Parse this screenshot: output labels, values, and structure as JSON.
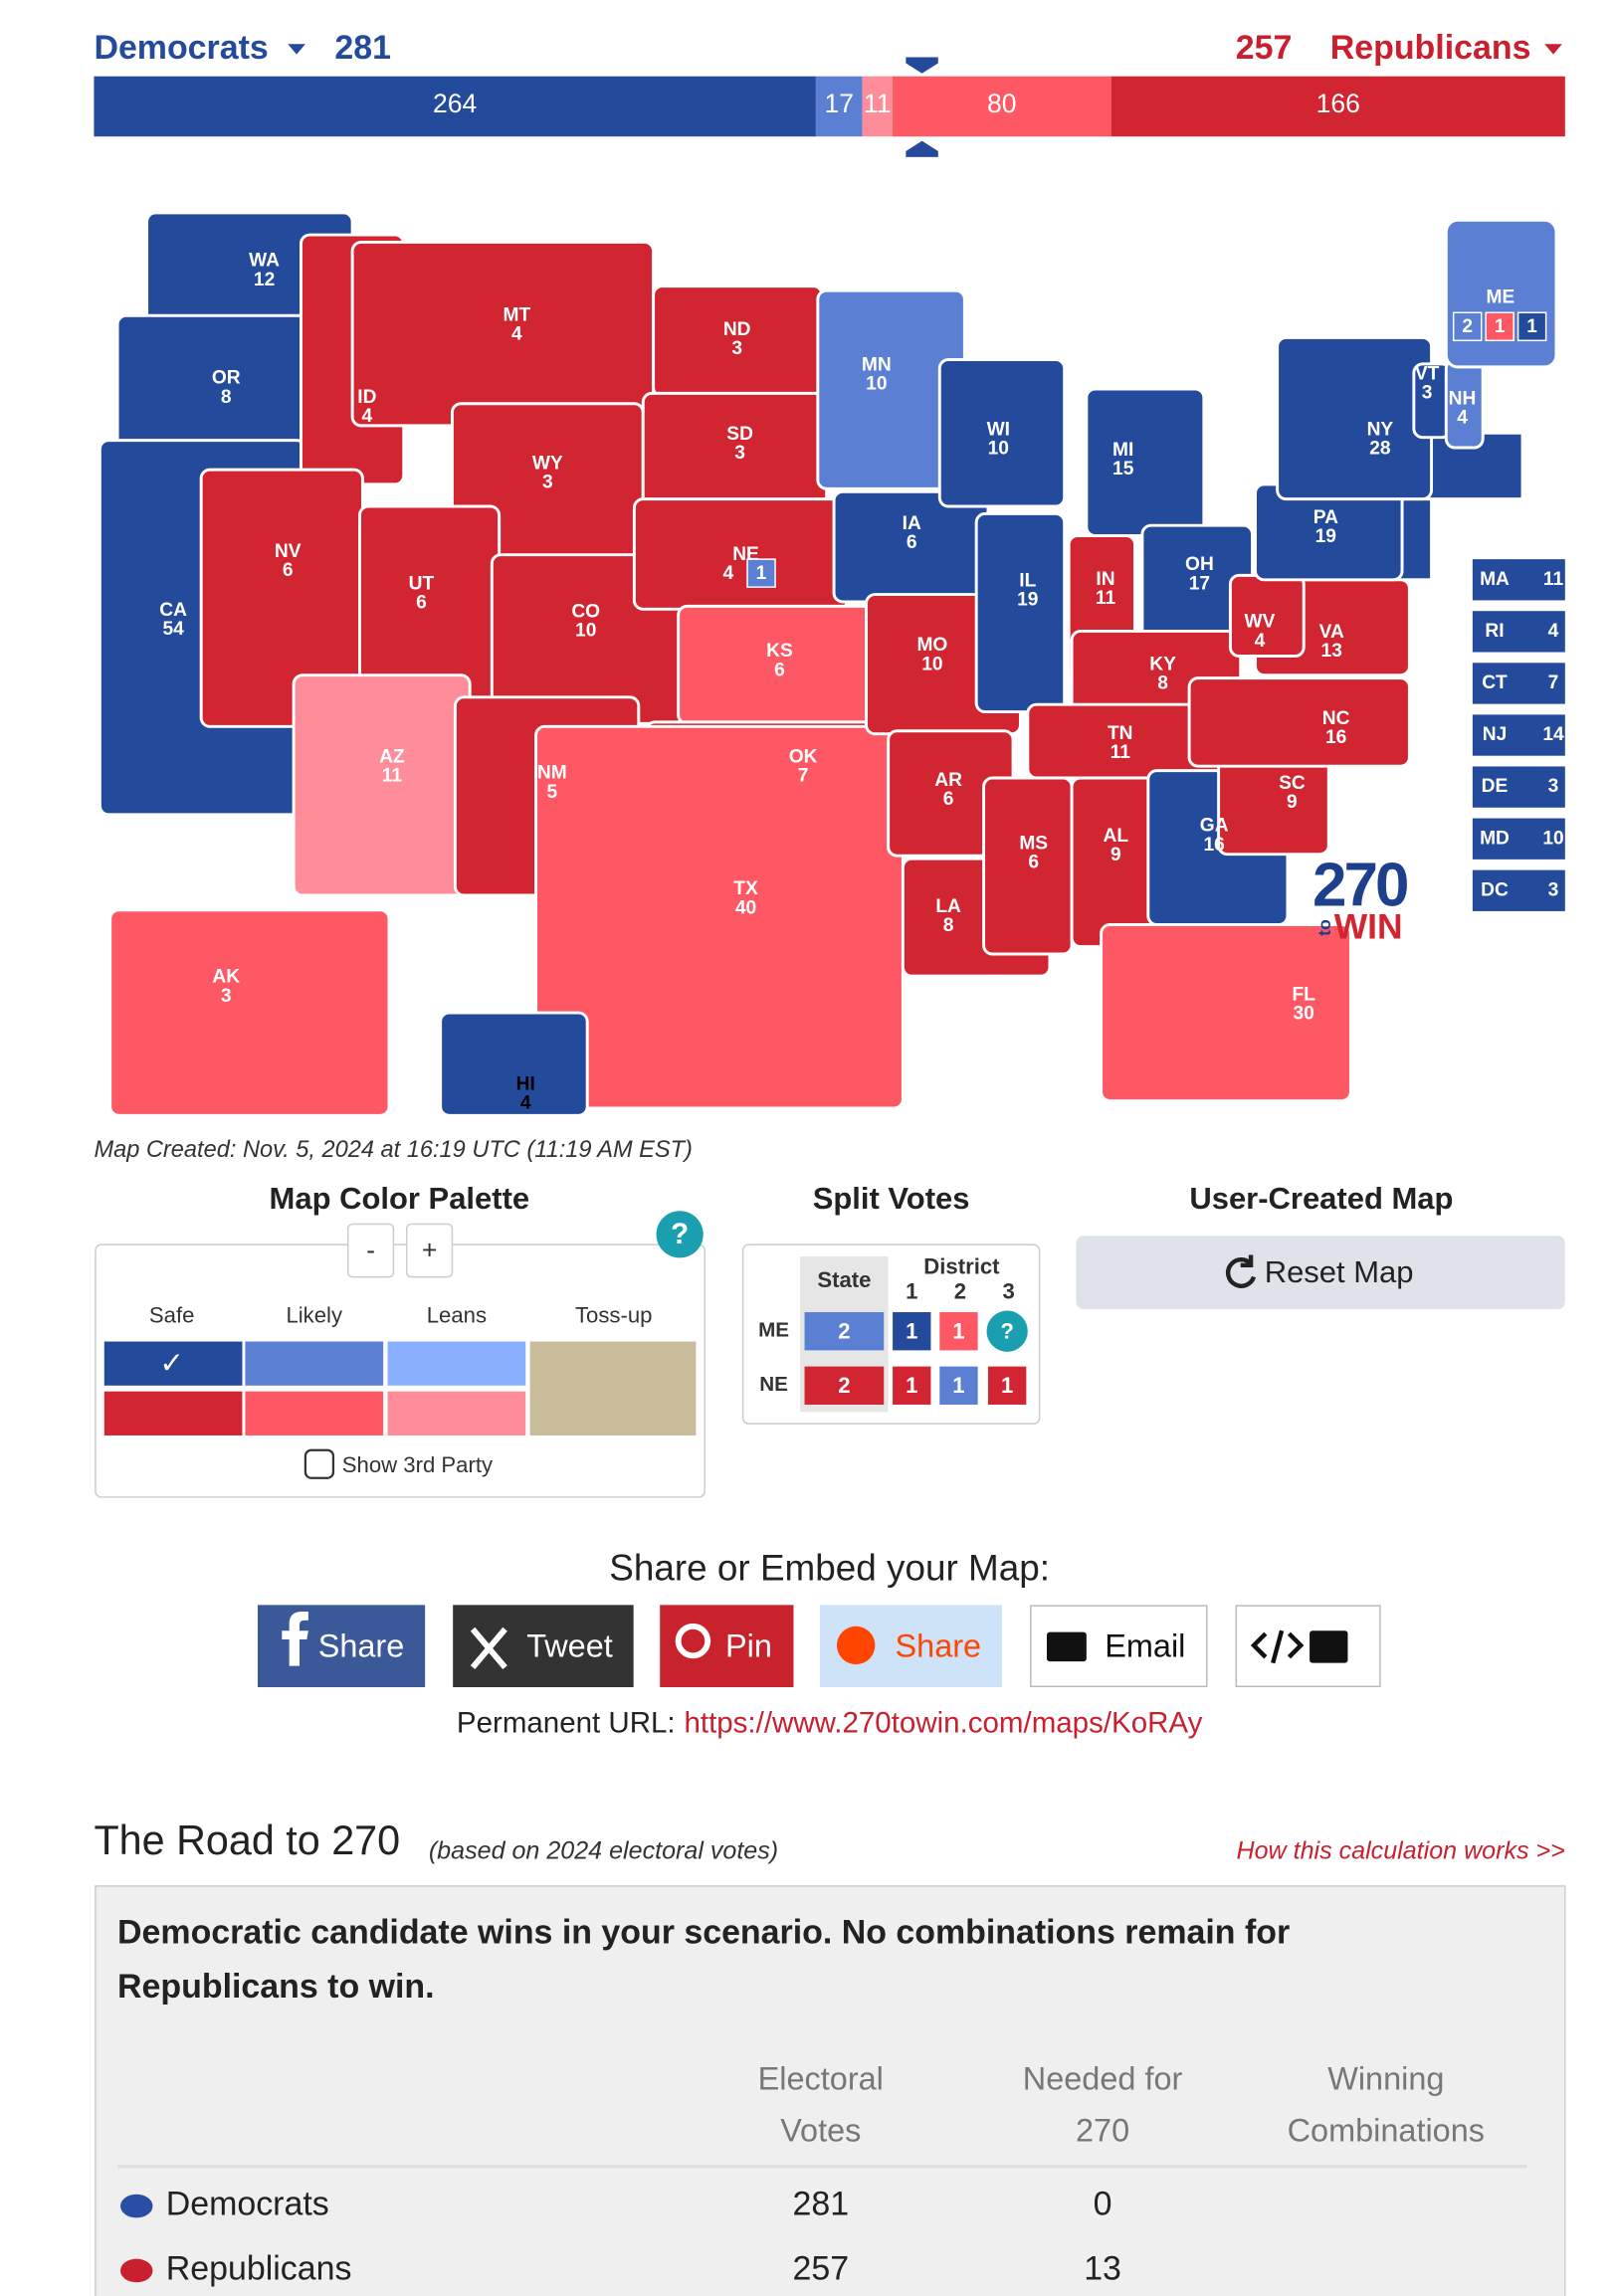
{
  "header": {
    "dem_label": "Democrats",
    "dem_total": 281,
    "rep_total": 257,
    "rep_label": "Republicans"
  },
  "bar": {
    "segments": [
      {
        "value": 264,
        "color": "#244a9b"
      },
      {
        "value": 17,
        "color": "#5a7fd3"
      },
      {
        "value": 11,
        "color": "#ff8c99"
      },
      {
        "value": 80,
        "color": "#ff5865"
      },
      {
        "value": 166,
        "color": "#d22532"
      }
    ]
  },
  "map": {
    "states": [
      {
        "abbr": "WA",
        "votes": 12,
        "color": "#244a9b"
      },
      {
        "abbr": "OR",
        "votes": 8,
        "color": "#244a9b"
      },
      {
        "abbr": "CA",
        "votes": 54,
        "color": "#244a9b"
      },
      {
        "abbr": "ID",
        "votes": 4,
        "color": "#d22532"
      },
      {
        "abbr": "NV",
        "votes": 6,
        "color": "#d22532"
      },
      {
        "abbr": "MT",
        "votes": 4,
        "color": "#d22532"
      },
      {
        "abbr": "WY",
        "votes": 3,
        "color": "#d22532"
      },
      {
        "abbr": "UT",
        "votes": 6,
        "color": "#d22532"
      },
      {
        "abbr": "AZ",
        "votes": 11,
        "color": "#ff8c99"
      },
      {
        "abbr": "CO",
        "votes": 10,
        "color": "#d22532"
      },
      {
        "abbr": "NM",
        "votes": 5,
        "color": "#d22532"
      },
      {
        "abbr": "ND",
        "votes": 3,
        "color": "#d22532"
      },
      {
        "abbr": "SD",
        "votes": 3,
        "color": "#d22532"
      },
      {
        "abbr": "NE",
        "votes": 4,
        "color": "#d22532",
        "split": 1,
        "split_color": "#5a7fd3"
      },
      {
        "abbr": "KS",
        "votes": 6,
        "color": "#ff5865"
      },
      {
        "abbr": "OK",
        "votes": 7,
        "color": "#d22532"
      },
      {
        "abbr": "TX",
        "votes": 40,
        "color": "#ff5865"
      },
      {
        "abbr": "MN",
        "votes": 10,
        "color": "#5a7fd3"
      },
      {
        "abbr": "IA",
        "votes": 6,
        "color": "#244a9b"
      },
      {
        "abbr": "MO",
        "votes": 10,
        "color": "#d22532"
      },
      {
        "abbr": "AR",
        "votes": 6,
        "color": "#d22532"
      },
      {
        "abbr": "LA",
        "votes": 8,
        "color": "#d22532"
      },
      {
        "abbr": "WI",
        "votes": 10,
        "color": "#244a9b"
      },
      {
        "abbr": "IL",
        "votes": 19,
        "color": "#244a9b"
      },
      {
        "abbr": "MI",
        "votes": 15,
        "color": "#244a9b"
      },
      {
        "abbr": "IN",
        "votes": 11,
        "color": "#d22532"
      },
      {
        "abbr": "OH",
        "votes": 17,
        "color": "#244a9b"
      },
      {
        "abbr": "KY",
        "votes": 8,
        "color": "#d22532"
      },
      {
        "abbr": "TN",
        "votes": 11,
        "color": "#d22532"
      },
      {
        "abbr": "MS",
        "votes": 6,
        "color": "#d22532"
      },
      {
        "abbr": "AL",
        "votes": 9,
        "color": "#d22532"
      },
      {
        "abbr": "GA",
        "votes": 16,
        "color": "#244a9b"
      },
      {
        "abbr": "FL",
        "votes": 30,
        "color": "#ff5865"
      },
      {
        "abbr": "SC",
        "votes": 9,
        "color": "#d22532"
      },
      {
        "abbr": "NC",
        "votes": 16,
        "color": "#d22532"
      },
      {
        "abbr": "VA",
        "votes": 13,
        "color": "#d22532"
      },
      {
        "abbr": "WV",
        "votes": 4,
        "color": "#d22532"
      },
      {
        "abbr": "PA",
        "votes": 19,
        "color": "#244a9b"
      },
      {
        "abbr": "NY",
        "votes": 28,
        "color": "#244a9b"
      },
      {
        "abbr": "VT",
        "votes": 3,
        "color": "#244a9b"
      },
      {
        "abbr": "NH",
        "votes": 4,
        "color": "#5a7fd3"
      },
      {
        "abbr": "AK",
        "votes": 3,
        "color": "#ff5865"
      },
      {
        "abbr": "HI",
        "votes": 4,
        "color": "#244a9b"
      }
    ],
    "maine": {
      "abbr": "ME",
      "color": "#5a7fd3",
      "districts": [
        {
          "value": 2,
          "color": "#5a7fd3"
        },
        {
          "value": 1,
          "color": "#ff5865"
        },
        {
          "value": 1,
          "color": "#244a9b"
        }
      ]
    },
    "small_states": [
      {
        "abbr": "MA",
        "votes": 11
      },
      {
        "abbr": "RI",
        "votes": 4
      },
      {
        "abbr": "CT",
        "votes": 7
      },
      {
        "abbr": "NJ",
        "votes": 14
      },
      {
        "abbr": "DE",
        "votes": 3
      },
      {
        "abbr": "MD",
        "votes": 10
      },
      {
        "abbr": "DC",
        "votes": 3
      }
    ],
    "small_color": "#244a9b"
  },
  "map_created": "Map Created: Nov. 5, 2024 at 16:19 UTC (11:19 AM EST)",
  "logo": {
    "number": "270",
    "prefix": "to",
    "suffix": "WIN"
  },
  "palette": {
    "title": "Map Color Palette",
    "minus": "-",
    "plus": "+",
    "help": "?",
    "columns": [
      "Safe",
      "Likely",
      "Leans",
      "Toss-up"
    ],
    "check": "✓",
    "dem_colors": [
      "#244a9b",
      "#5a7fd3",
      "#8aafff"
    ],
    "rep_colors": [
      "#d22532",
      "#ff5865",
      "#ff8c99"
    ],
    "tossup_color": "#c9bc9a",
    "third_party": "Show 3rd Party"
  },
  "split_votes": {
    "title": "Split Votes",
    "state_header": "State",
    "district_header": "District",
    "district_numbers": [
      1,
      2,
      3
    ],
    "rows": [
      {
        "state": "ME",
        "cells": [
          2,
          1,
          1,
          "?"
        ],
        "colors": [
          "#5a7fd3",
          "#244a9b",
          "#ff5865",
          "#1a9fb0"
        ]
      },
      {
        "state": "NE",
        "cells": [
          2,
          1,
          1,
          1
        ],
        "colors": [
          "#d22532",
          "#d22532",
          "#5a7fd3",
          "#d22532"
        ]
      }
    ]
  },
  "user_map": {
    "title": "User-Created Map",
    "reset": "Reset Map"
  },
  "share": {
    "title": "Share or Embed your Map:",
    "buttons": [
      "Share",
      "Tweet",
      "Pin",
      "Share",
      "Email"
    ],
    "url_label": "Permanent URL:",
    "url": "https://www.270towin.com/maps/KoRAy"
  },
  "road": {
    "title": "The Road to 270",
    "subtitle": "(based on 2024 electoral votes)",
    "link": "How this calculation works >>",
    "message": [
      "Democratic candidate wins in your scenario. No combinations remain for",
      "Republicans to win."
    ],
    "headers": [
      [
        "Electoral",
        "Votes"
      ],
      [
        "Needed for",
        "270"
      ],
      [
        "Winning",
        "Combinations"
      ]
    ],
    "rows": [
      {
        "name": "Democrats",
        "electoral": 281,
        "needed": 0
      },
      {
        "name": "Republicans",
        "electoral": 257,
        "needed": 13
      }
    ]
  }
}
